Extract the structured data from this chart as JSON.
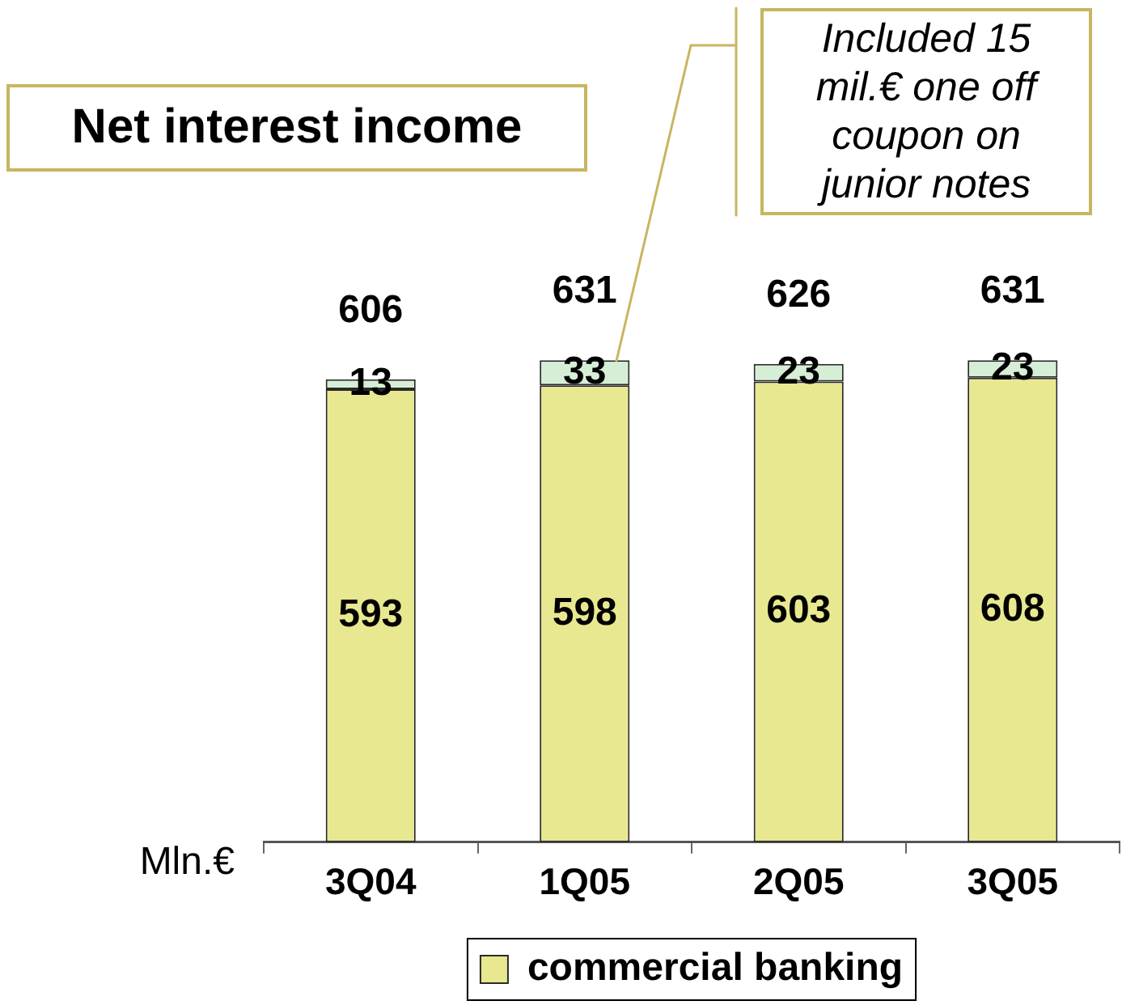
{
  "chart_data": {
    "type": "bar",
    "title": "Net interest income",
    "ylabel": "Mln.€",
    "categories": [
      "3Q04",
      "1Q05",
      "2Q05",
      "3Q05"
    ],
    "series": [
      {
        "name": "commercial banking",
        "color": "#e8e890",
        "values": [
          593,
          598,
          603,
          608
        ]
      },
      {
        "color": "#d6eed6",
        "values": [
          13,
          33,
          23,
          23
        ]
      }
    ],
    "stacked": true,
    "tick_labels": "x",
    "data_labels": true,
    "totals": [
      "606",
      "631",
      "626",
      "631"
    ],
    "legend": "bottom",
    "annotations": [
      "Included 15 mil.€ one off coupon on junior notes"
    ]
  }
}
